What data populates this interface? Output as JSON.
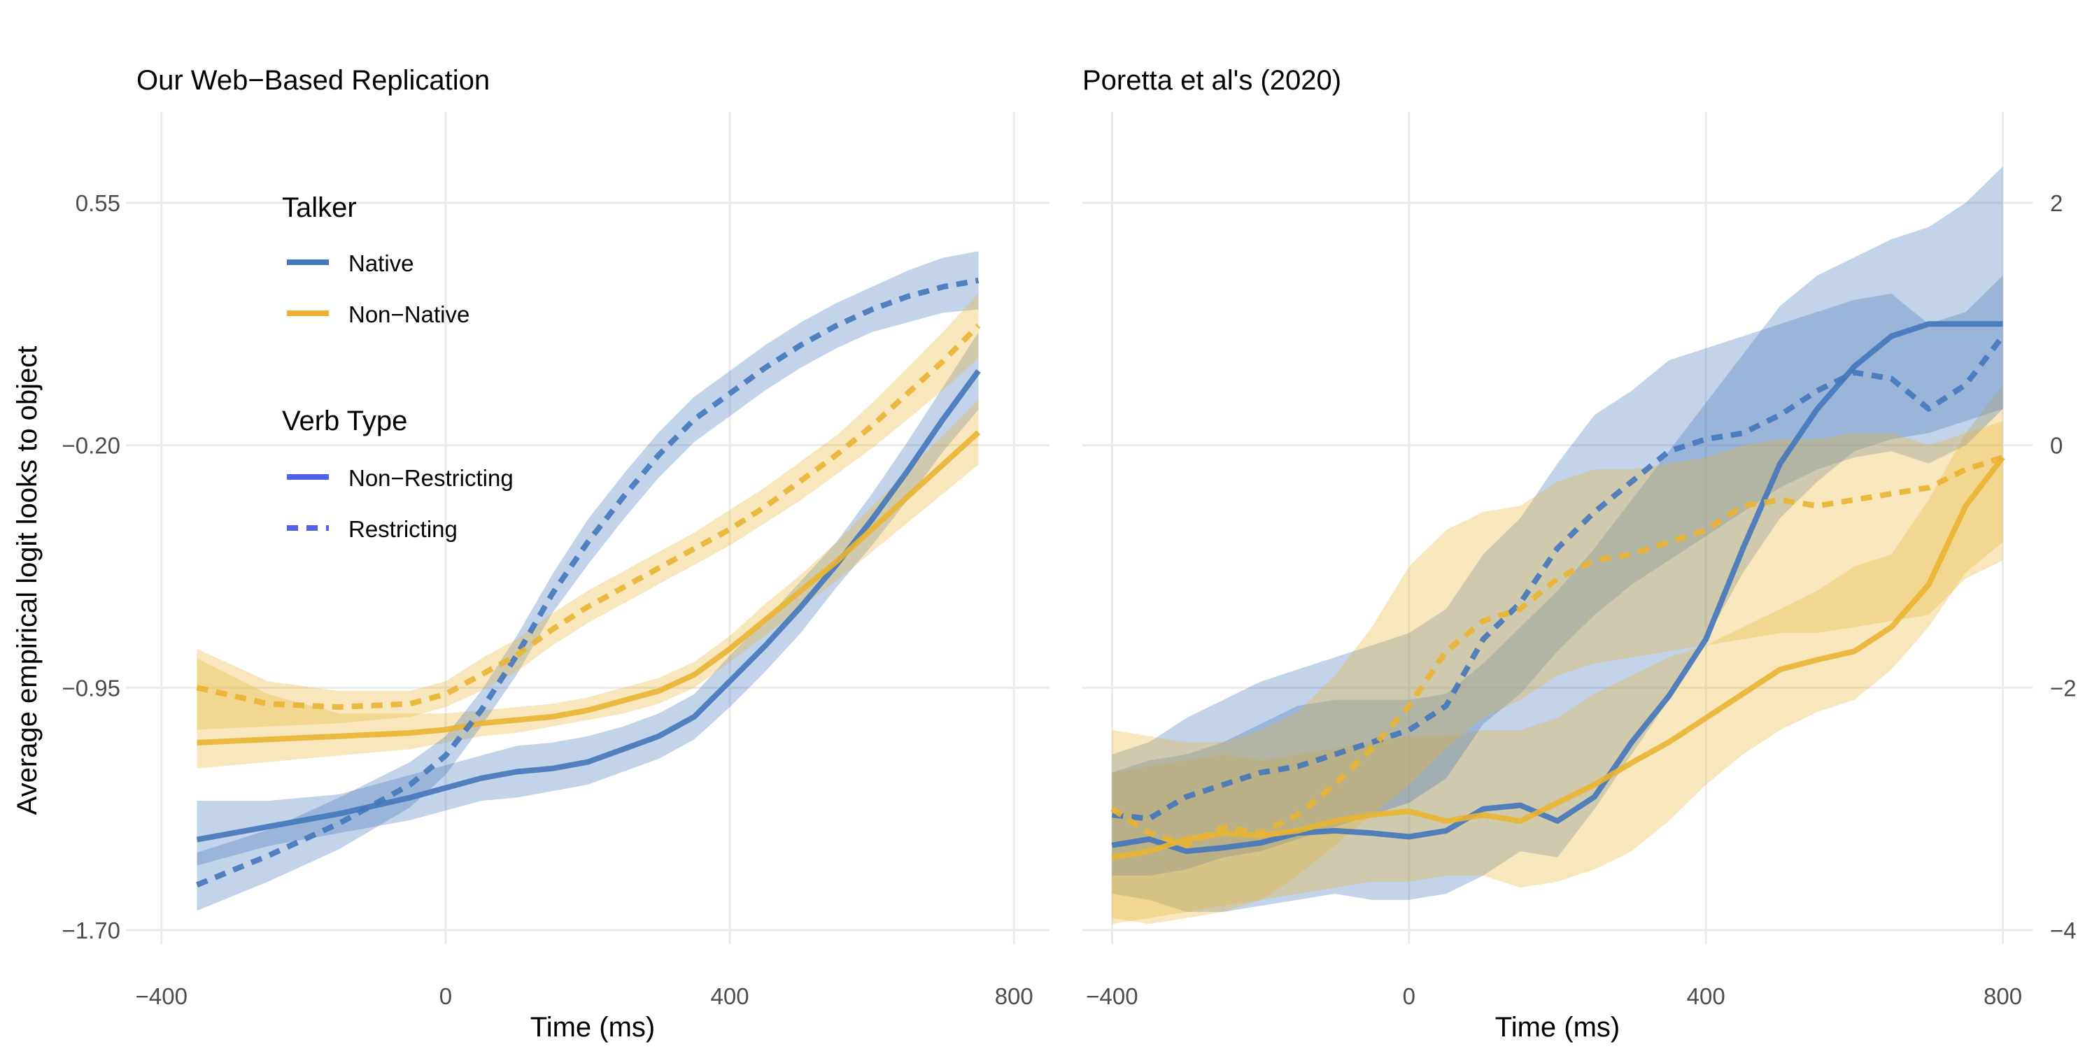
{
  "chart_data": [
    {
      "type": "line",
      "title": "Our Web-Based Replication",
      "xlabel": "Time (ms)",
      "ylabel": "Average empirical logit looks to object",
      "xlim": [
        -450,
        850
      ],
      "ylim": [
        -1.7,
        0.55
      ],
      "x_ticks": [
        -400,
        0,
        400,
        800
      ],
      "x_tick_labels": [
        "−400",
        "0",
        "400",
        "800"
      ],
      "y_ticks": [
        -1.7,
        -0.95,
        -0.2,
        0.55
      ],
      "y_tick_labels": [
        "−1.70",
        "−0.95",
        "−0.20",
        "0.55"
      ],
      "y_axis_side": "left",
      "grid": true,
      "legend": "top-left",
      "series": [
        {
          "name": "Native, Non-Restricting",
          "talker": "Native",
          "verb": "Non-Restricting",
          "color": "#4477BB",
          "dash": false,
          "x": [
            -350,
            -250,
            -150,
            -50,
            0,
            50,
            100,
            150,
            200,
            250,
            300,
            350,
            400,
            450,
            500,
            550,
            600,
            650,
            700,
            750
          ],
          "y": [
            -1.42,
            -1.38,
            -1.34,
            -1.29,
            -1.26,
            -1.23,
            -1.21,
            -1.2,
            -1.18,
            -1.14,
            -1.1,
            -1.04,
            -0.93,
            -0.82,
            -0.7,
            -0.57,
            -0.43,
            -0.28,
            -0.12,
            0.03
          ],
          "lo": [
            -1.5,
            -1.44,
            -1.4,
            -1.36,
            -1.33,
            -1.3,
            -1.29,
            -1.27,
            -1.25,
            -1.21,
            -1.17,
            -1.11,
            -1.01,
            -0.9,
            -0.78,
            -0.64,
            -0.51,
            -0.37,
            -0.22,
            -0.09
          ],
          "hi": [
            -1.3,
            -1.3,
            -1.28,
            -1.22,
            -1.19,
            -1.16,
            -1.13,
            -1.12,
            -1.1,
            -1.07,
            -1.03,
            -0.97,
            -0.85,
            -0.74,
            -0.62,
            -0.5,
            -0.35,
            -0.19,
            -0.02,
            0.15
          ]
        },
        {
          "name": "Non-Native, Non-Restricting",
          "talker": "Non-Native",
          "verb": "Non-Restricting",
          "color": "#E9B431",
          "dash": false,
          "x": [
            -350,
            -250,
            -150,
            -50,
            0,
            50,
            100,
            150,
            200,
            250,
            300,
            350,
            400,
            450,
            500,
            550,
            600,
            650,
            700,
            750
          ],
          "y": [
            -1.12,
            -1.11,
            -1.1,
            -1.09,
            -1.08,
            -1.06,
            -1.05,
            -1.04,
            -1.02,
            -0.99,
            -0.96,
            -0.91,
            -0.83,
            -0.74,
            -0.65,
            -0.56,
            -0.46,
            -0.36,
            -0.26,
            -0.16
          ],
          "lo": [
            -1.2,
            -1.18,
            -1.16,
            -1.14,
            -1.12,
            -1.1,
            -1.09,
            -1.07,
            -1.05,
            -1.03,
            -1.0,
            -0.95,
            -0.87,
            -0.79,
            -0.7,
            -0.62,
            -0.53,
            -0.44,
            -0.35,
            -0.26
          ],
          "hi": [
            -0.86,
            -0.97,
            -1.03,
            -1.03,
            -1.03,
            -1.02,
            -1.01,
            -1.0,
            -0.98,
            -0.95,
            -0.92,
            -0.87,
            -0.79,
            -0.69,
            -0.6,
            -0.5,
            -0.39,
            -0.28,
            -0.17,
            -0.06
          ]
        },
        {
          "name": "Native, Restricting",
          "talker": "Native",
          "verb": "Restricting",
          "color": "#4477BB",
          "dash": true,
          "x": [
            -350,
            -250,
            -150,
            -50,
            0,
            50,
            100,
            150,
            200,
            250,
            300,
            350,
            400,
            450,
            500,
            550,
            600,
            650,
            700,
            750
          ],
          "y": [
            -1.56,
            -1.47,
            -1.37,
            -1.25,
            -1.16,
            -1.02,
            -0.85,
            -0.66,
            -0.5,
            -0.36,
            -0.23,
            -0.12,
            -0.04,
            0.04,
            0.11,
            0.17,
            0.22,
            0.26,
            0.29,
            0.31
          ],
          "lo": [
            -1.64,
            -1.55,
            -1.45,
            -1.32,
            -1.22,
            -1.07,
            -0.91,
            -0.72,
            -0.57,
            -0.43,
            -0.3,
            -0.19,
            -0.11,
            -0.03,
            0.04,
            0.1,
            0.15,
            0.18,
            0.21,
            0.22
          ],
          "hi": [
            -1.46,
            -1.39,
            -1.29,
            -1.18,
            -1.1,
            -0.96,
            -0.79,
            -0.6,
            -0.43,
            -0.29,
            -0.16,
            -0.05,
            0.03,
            0.11,
            0.18,
            0.24,
            0.29,
            0.34,
            0.38,
            0.4
          ]
        },
        {
          "name": "Non-Native, Restricting",
          "talker": "Non-Native",
          "verb": "Restricting",
          "color": "#E9B431",
          "dash": true,
          "x": [
            -350,
            -250,
            -150,
            -50,
            0,
            50,
            100,
            150,
            200,
            250,
            300,
            350,
            400,
            450,
            500,
            550,
            600,
            650,
            700,
            750
          ],
          "y": [
            -0.95,
            -1.0,
            -1.01,
            -1.0,
            -0.97,
            -0.91,
            -0.85,
            -0.77,
            -0.7,
            -0.64,
            -0.58,
            -0.52,
            -0.46,
            -0.39,
            -0.31,
            -0.23,
            -0.14,
            -0.04,
            0.06,
            0.17
          ],
          "lo": [
            -1.08,
            -1.07,
            -1.06,
            -1.04,
            -1.01,
            -0.96,
            -0.9,
            -0.82,
            -0.75,
            -0.69,
            -0.63,
            -0.57,
            -0.51,
            -0.44,
            -0.37,
            -0.29,
            -0.21,
            -0.12,
            -0.03,
            0.07
          ],
          "hi": [
            -0.83,
            -0.93,
            -0.96,
            -0.96,
            -0.93,
            -0.86,
            -0.8,
            -0.72,
            -0.65,
            -0.59,
            -0.53,
            -0.47,
            -0.4,
            -0.33,
            -0.25,
            -0.17,
            -0.07,
            0.04,
            0.15,
            0.27
          ]
        }
      ]
    },
    {
      "type": "line",
      "title": "Poretta et al's (2020)",
      "xlabel": "Time (ms)",
      "xlim": [
        -440,
        840
      ],
      "ylim": [
        -4,
        2
      ],
      "x_ticks": [
        -400,
        0,
        400,
        800
      ],
      "x_tick_labels": [
        "−400",
        "0",
        "400",
        "800"
      ],
      "y_ticks": [
        -4,
        -2,
        0,
        2
      ],
      "y_tick_labels": [
        "−4",
        "−2",
        "0",
        "2"
      ],
      "y_axis_side": "right",
      "grid": true,
      "series": [
        {
          "name": "Native, Non-Restricting",
          "talker": "Native",
          "verb": "Non-Restricting",
          "color": "#4477BB",
          "dash": false,
          "x": [
            -400,
            -350,
            -300,
            -250,
            -200,
            -150,
            -100,
            -50,
            0,
            50,
            100,
            150,
            200,
            250,
            300,
            350,
            400,
            450,
            500,
            550,
            600,
            650,
            700,
            750,
            800
          ],
          "y": [
            -3.3,
            -3.25,
            -3.35,
            -3.32,
            -3.28,
            -3.2,
            -3.18,
            -3.2,
            -3.23,
            -3.18,
            -3.0,
            -2.97,
            -3.1,
            -2.9,
            -2.45,
            -2.07,
            -1.6,
            -0.85,
            -0.15,
            0.3,
            0.65,
            0.9,
            1.0,
            1.0,
            1.0
          ],
          "lo": [
            -3.7,
            -3.75,
            -3.85,
            -3.85,
            -3.8,
            -3.75,
            -3.7,
            -3.75,
            -3.75,
            -3.7,
            -3.55,
            -3.35,
            -3.4,
            -3.0,
            -2.55,
            -2.1,
            -1.6,
            -1.05,
            -0.6,
            -0.3,
            -0.05,
            0.05,
            0.1,
            0.2,
            0.3
          ],
          "hi": [
            -2.7,
            -2.6,
            -2.55,
            -2.45,
            -2.3,
            -2.15,
            -2.1,
            -2.1,
            -2.1,
            -2.05,
            -1.8,
            -1.5,
            -1.2,
            -0.85,
            -0.45,
            -0.05,
            0.35,
            0.75,
            1.15,
            1.4,
            1.55,
            1.7,
            1.8,
            2.0,
            2.3
          ]
        },
        {
          "name": "Non-Native, Non-Restricting",
          "talker": "Non-Native",
          "verb": "Non-Restricting",
          "color": "#E9B431",
          "dash": false,
          "x": [
            -400,
            -350,
            -300,
            -250,
            -200,
            -150,
            -100,
            -50,
            0,
            50,
            100,
            150,
            200,
            250,
            300,
            350,
            400,
            450,
            500,
            550,
            600,
            650,
            700,
            750,
            800
          ],
          "y": [
            -3.4,
            -3.35,
            -3.25,
            -3.2,
            -3.22,
            -3.18,
            -3.1,
            -3.05,
            -3.02,
            -3.1,
            -3.05,
            -3.1,
            -2.95,
            -2.8,
            -2.62,
            -2.45,
            -2.25,
            -2.05,
            -1.85,
            -1.77,
            -1.7,
            -1.5,
            -1.15,
            -0.5,
            -0.1
          ],
          "lo": [
            -3.95,
            -3.9,
            -3.85,
            -3.8,
            -3.75,
            -3.7,
            -3.65,
            -3.6,
            -3.6,
            -3.55,
            -3.55,
            -3.65,
            -3.6,
            -3.5,
            -3.35,
            -3.1,
            -2.8,
            -2.55,
            -2.35,
            -2.2,
            -2.1,
            -1.85,
            -1.5,
            -1.05,
            -0.8
          ],
          "hi": [
            -2.7,
            -2.65,
            -2.6,
            -2.55,
            -2.6,
            -2.55,
            -2.5,
            -2.45,
            -2.4,
            -2.4,
            -2.35,
            -2.35,
            -2.25,
            -2.05,
            -1.9,
            -1.75,
            -1.65,
            -1.5,
            -1.35,
            -1.2,
            -1.0,
            -0.9,
            -0.45,
            0.1,
            0.5
          ]
        },
        {
          "name": "Native, Restricting",
          "talker": "Native",
          "verb": "Restricting",
          "color": "#4477BB",
          "dash": true,
          "x": [
            -400,
            -350,
            -300,
            -250,
            -200,
            -150,
            -100,
            -50,
            0,
            50,
            100,
            150,
            200,
            250,
            300,
            350,
            400,
            450,
            500,
            550,
            600,
            650,
            700,
            750,
            800
          ],
          "y": [
            -3.05,
            -3.08,
            -2.9,
            -2.8,
            -2.7,
            -2.65,
            -2.55,
            -2.45,
            -2.35,
            -2.15,
            -1.6,
            -1.3,
            -0.85,
            -0.55,
            -0.3,
            -0.05,
            0.05,
            0.1,
            0.25,
            0.45,
            0.6,
            0.55,
            0.3,
            0.5,
            0.9
          ],
          "lo": [
            -3.55,
            -3.55,
            -3.5,
            -3.4,
            -3.35,
            -3.25,
            -3.15,
            -3.05,
            -2.95,
            -2.75,
            -2.3,
            -2.05,
            -1.7,
            -1.4,
            -1.15,
            -0.95,
            -0.75,
            -0.55,
            -0.35,
            -0.2,
            -0.1,
            -0.05,
            -0.15,
            0.0,
            0.3
          ],
          "hi": [
            -2.55,
            -2.45,
            -2.25,
            -2.1,
            -1.95,
            -1.85,
            -1.75,
            -1.65,
            -1.55,
            -1.35,
            -0.9,
            -0.6,
            -0.15,
            0.25,
            0.45,
            0.7,
            0.8,
            0.9,
            1.0,
            1.1,
            1.2,
            1.25,
            1.0,
            1.1,
            1.4
          ]
        },
        {
          "name": "Non-Native, Restricting",
          "talker": "Non-Native",
          "verb": "Restricting",
          "color": "#E9B431",
          "dash": true,
          "x": [
            -400,
            -350,
            -300,
            -250,
            -200,
            -150,
            -100,
            -50,
            0,
            50,
            100,
            150,
            200,
            250,
            300,
            350,
            400,
            450,
            500,
            550,
            600,
            650,
            700,
            750,
            800
          ],
          "y": [
            -3.0,
            -3.2,
            -3.3,
            -3.15,
            -3.2,
            -3.05,
            -2.8,
            -2.5,
            -2.15,
            -1.7,
            -1.45,
            -1.35,
            -1.1,
            -0.95,
            -0.9,
            -0.8,
            -0.7,
            -0.5,
            -0.45,
            -0.5,
            -0.45,
            -0.4,
            -0.35,
            -0.2,
            -0.1
          ],
          "lo": [
            -3.9,
            -3.95,
            -3.9,
            -3.85,
            -3.75,
            -3.55,
            -3.3,
            -3.05,
            -2.8,
            -2.5,
            -2.25,
            -2.1,
            -1.9,
            -1.8,
            -1.75,
            -1.7,
            -1.65,
            -1.6,
            -1.55,
            -1.55,
            -1.5,
            -1.45,
            -1.4,
            -1.1,
            -0.95
          ],
          "hi": [
            -2.35,
            -2.4,
            -2.45,
            -2.45,
            -2.35,
            -2.2,
            -1.9,
            -1.5,
            -1.0,
            -0.7,
            -0.55,
            -0.5,
            -0.3,
            -0.2,
            -0.2,
            -0.15,
            -0.1,
            0.0,
            0.05,
            0.05,
            0.1,
            0.1,
            0.0,
            0.1,
            0.2
          ]
        }
      ]
    }
  ],
  "legend": {
    "talker_title": "Talker",
    "talker_items": [
      {
        "label": "Native",
        "color": "#4477BB"
      },
      {
        "label": "Non−Native",
        "color": "#E9B431"
      }
    ],
    "verb_title": "Verb Type",
    "verb_items": [
      {
        "label": "Non−Restricting",
        "color": "#4F63E8",
        "dash": false
      },
      {
        "label": "Restricting",
        "color": "#4F63E8",
        "dash": true
      }
    ]
  },
  "panels": [
    {
      "title": "Our Web−Based Replication",
      "xlabel": "Time (ms)"
    },
    {
      "title": "Poretta et al's (2020)",
      "xlabel": "Time (ms)"
    }
  ],
  "shared_ylabel": "Average empirical logit looks to object"
}
